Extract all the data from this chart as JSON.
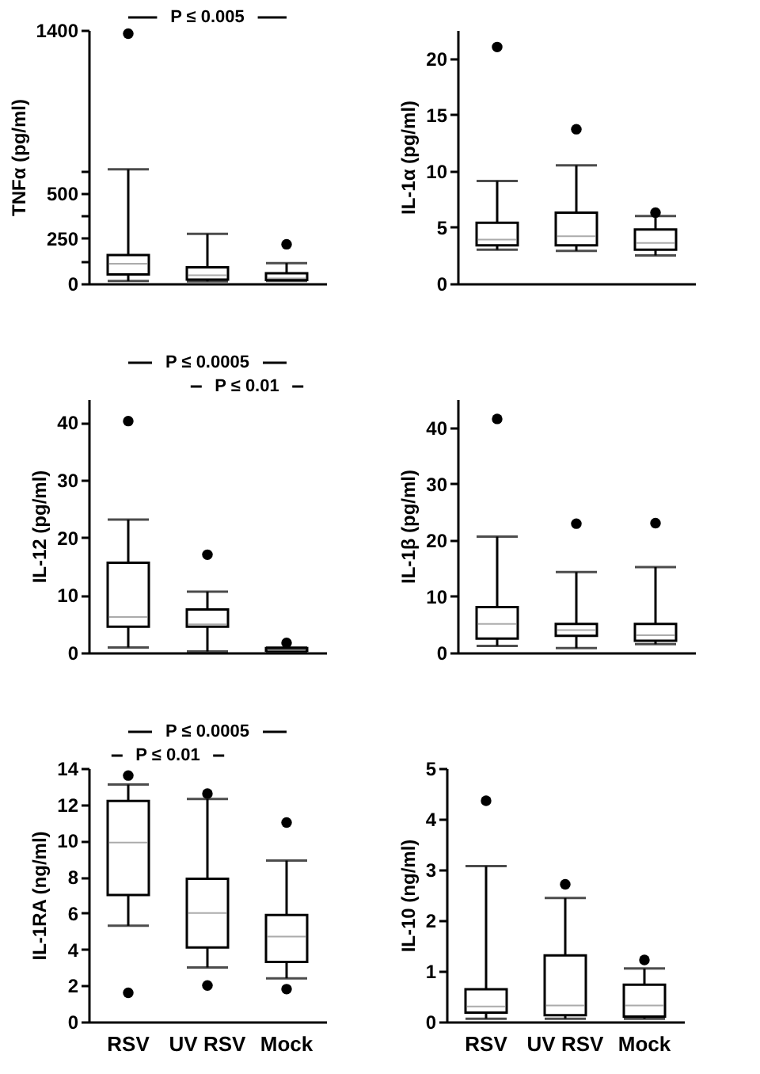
{
  "chart_data": [
    {
      "type": "box",
      "ylabel": "TNFα (pg/ml)",
      "ylim": [
        0,
        1400
      ],
      "yticks": [
        0,
        {
          "value": 125,
          "label": null
        },
        250,
        {
          "value": 375,
          "label": null
        },
        500,
        {
          "value": 625,
          "label": null
        },
        1400
      ],
      "tick_labels": "y",
      "annotations": [
        "P ≤ 0.005"
      ],
      "boxes": [
        {
          "low": 14,
          "q1": 50,
          "median": 109,
          "q3": 157,
          "high": 631,
          "outliers": [
            1380
          ]
        },
        {
          "low": 12,
          "q1": 22,
          "median": 46,
          "q3": 90,
          "high": 274
        },
        {
          "low": 14,
          "q1": 20,
          "median": 28,
          "q3": 57,
          "high": 113,
          "outliers": [
            217
          ]
        }
      ]
    },
    {
      "type": "box",
      "ylabel": "IL-1α (pg/ml)",
      "ylim": [
        0,
        22.5
      ],
      "yticks": [
        0,
        5,
        10,
        15,
        20
      ],
      "tick_labels": "y",
      "boxes": [
        {
          "low": 3.0,
          "q1": 3.4,
          "median": 3.9,
          "q3": 5.4,
          "high": 9.1,
          "outliers": [
            21.0
          ]
        },
        {
          "low": 2.9,
          "q1": 3.4,
          "median": 4.2,
          "q3": 6.3,
          "high": 10.5,
          "outliers": [
            13.7
          ]
        },
        {
          "low": 2.5,
          "q1": 3.0,
          "median": 3.6,
          "q3": 4.8,
          "high": 6.0,
          "outliers": [
            6.3
          ]
        }
      ]
    },
    {
      "type": "box",
      "ylabel": "IL-12 (pg/ml)",
      "ylim": [
        0,
        44
      ],
      "yticks": [
        0,
        10,
        20,
        30,
        40
      ],
      "tick_labels": "y",
      "annotations": [
        "P ≤ 0.0005",
        "P ≤ 0.01"
      ],
      "boxes": [
        {
          "low": 0.9,
          "q1": 4.5,
          "median": 6.2,
          "q3": 15.6,
          "high": 23.1,
          "outliers": [
            40.2
          ]
        },
        {
          "low": 0.2,
          "q1": 4.5,
          "median": 4.9,
          "q3": 7.5,
          "high": 10.6,
          "outliers": [
            17.0
          ]
        },
        {
          "low": 0.2,
          "q1": 0.3,
          "median": 0.4,
          "q3": 0.8,
          "high": 0.9,
          "outliers": [
            1.7
          ]
        }
      ]
    },
    {
      "type": "box",
      "ylabel": "IL-1β (pg/ml)",
      "ylim": [
        0,
        45
      ],
      "yticks": [
        0,
        10,
        20,
        30,
        40
      ],
      "tick_labels": "y",
      "boxes": [
        {
          "low": 1.2,
          "q1": 2.5,
          "median": 5.1,
          "q3": 8.1,
          "high": 20.6,
          "outliers": [
            41.5
          ]
        },
        {
          "low": 0.8,
          "q1": 3.0,
          "median": 4.0,
          "q3": 5.1,
          "high": 14.3,
          "outliers": [
            22.9
          ]
        },
        {
          "low": 1.5,
          "q1": 2.1,
          "median": 3.1,
          "q3": 5.1,
          "high": 15.2,
          "outliers": [
            23.0
          ]
        }
      ]
    },
    {
      "type": "box",
      "categories": [
        "RSV",
        "UV RSV",
        "Mock"
      ],
      "ylabel": "IL-1RA (ng/ml)",
      "ylim": [
        0,
        14
      ],
      "yticks": [
        0,
        2,
        4,
        6,
        8,
        10,
        12,
        14
      ],
      "annotations": [
        "P ≤ 0.0005",
        "P ≤ 0.01"
      ],
      "boxes": [
        {
          "low": 5.3,
          "q1": 7.0,
          "median": 9.9,
          "q3": 12.2,
          "high": 13.1,
          "outliers": [
            13.6,
            1.6
          ]
        },
        {
          "low": 3.0,
          "q1": 4.1,
          "median": 6.0,
          "q3": 7.9,
          "high": 12.3,
          "outliers": [
            12.6,
            2.0
          ]
        },
        {
          "low": 2.4,
          "q1": 3.3,
          "median": 4.7,
          "q3": 5.9,
          "high": 8.9,
          "outliers": [
            11.0,
            1.8
          ]
        }
      ]
    },
    {
      "type": "box",
      "categories": [
        "RSV",
        "UV RSV",
        "Mock"
      ],
      "ylabel": "IL-10 (ng/ml)",
      "ylim": [
        0,
        5
      ],
      "yticks": [
        0,
        1,
        2,
        3,
        4,
        5
      ],
      "boxes": [
        {
          "low": 0.06,
          "q1": 0.18,
          "median": 0.3,
          "q3": 0.64,
          "high": 3.07,
          "outliers": [
            4.36
          ]
        },
        {
          "low": 0.06,
          "q1": 0.13,
          "median": 0.32,
          "q3": 1.31,
          "high": 2.44,
          "outliers": [
            2.71
          ]
        },
        {
          "low": 0.06,
          "q1": 0.1,
          "median": 0.32,
          "q3": 0.73,
          "high": 1.05,
          "outliers": [
            1.22
          ]
        }
      ]
    }
  ]
}
